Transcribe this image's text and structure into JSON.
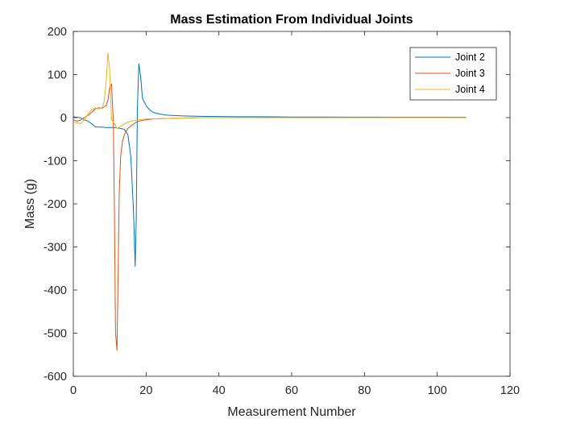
{
  "chart_data": {
    "type": "line",
    "title": "Mass Estimation From Individual Joints",
    "xlabel": "Measurement Number",
    "ylabel": "Mass (g)",
    "xlim": [
      0,
      120
    ],
    "ylim": [
      -600,
      200
    ],
    "xticks": [
      0,
      20,
      40,
      60,
      80,
      100,
      120
    ],
    "yticks": [
      -600,
      -500,
      -400,
      -300,
      -200,
      -100,
      0,
      100,
      200
    ],
    "grid": false,
    "legend_position": "top-right",
    "series": [
      {
        "name": "Joint 2",
        "color": "#0072BD",
        "x": [
          0,
          1,
          2,
          3,
          4,
          5,
          6,
          7,
          8,
          9,
          10,
          11,
          12,
          13,
          14,
          15,
          15.8,
          16.5,
          17,
          17.3,
          17.6,
          18,
          18.5,
          19,
          20,
          21,
          22,
          24,
          26,
          30,
          35,
          40,
          45,
          50,
          55,
          60,
          65,
          70,
          75,
          80,
          85,
          90,
          95,
          100,
          104,
          108
        ],
        "y": [
          2,
          1,
          0,
          -5,
          -8,
          -14,
          -21,
          -22,
          -22,
          -23,
          -23,
          -23,
          -24,
          -25,
          -27,
          -40,
          -90,
          -210,
          -345,
          -230,
          20,
          125,
          95,
          45,
          28,
          18,
          12,
          8,
          5.5,
          4,
          3,
          2.5,
          2,
          2,
          1.8,
          1.5,
          1.5,
          1.3,
          1.2,
          1.1,
          1.1,
          1,
          1,
          1,
          1,
          0.8
        ]
      },
      {
        "name": "Joint 3",
        "color": "#D95319",
        "x": [
          0,
          1,
          2,
          3,
          4,
          5,
          6,
          7,
          8,
          9,
          9.5,
          10,
          10.5,
          11,
          11.3,
          11.6,
          12,
          12.3,
          12.6,
          13,
          13.5,
          14,
          15,
          16,
          17,
          18,
          20,
          22,
          25,
          30,
          35,
          40,
          50,
          60,
          70,
          80,
          90,
          100,
          108
        ],
        "y": [
          -5,
          -8,
          -6,
          0,
          5,
          12,
          20,
          23,
          22,
          28,
          40,
          70,
          78,
          -10,
          -220,
          -500,
          -540,
          -370,
          -180,
          -90,
          -55,
          -40,
          -25,
          -18,
          -12,
          -8,
          -5,
          -3,
          -2,
          -1,
          0,
          0,
          0,
          0,
          0,
          0,
          0,
          0,
          0
        ]
      },
      {
        "name": "Joint 4",
        "color": "#EDB120",
        "x": [
          0,
          1,
          2,
          3,
          4,
          5,
          6,
          7,
          8,
          8.5,
          9,
          9.5,
          10,
          10.5,
          11,
          12,
          13,
          14,
          15,
          16,
          18,
          20,
          25,
          30,
          35,
          40,
          50,
          60,
          70,
          80,
          90,
          100,
          108
        ],
        "y": [
          -10,
          -12,
          -14,
          -5,
          8,
          18,
          23,
          20,
          24,
          40,
          80,
          150,
          110,
          -5,
          -10,
          -25,
          -20,
          -15,
          -10,
          -8,
          -5,
          -3,
          -2,
          -1,
          0,
          0,
          0,
          0,
          0,
          0,
          0,
          0,
          0
        ]
      }
    ]
  }
}
